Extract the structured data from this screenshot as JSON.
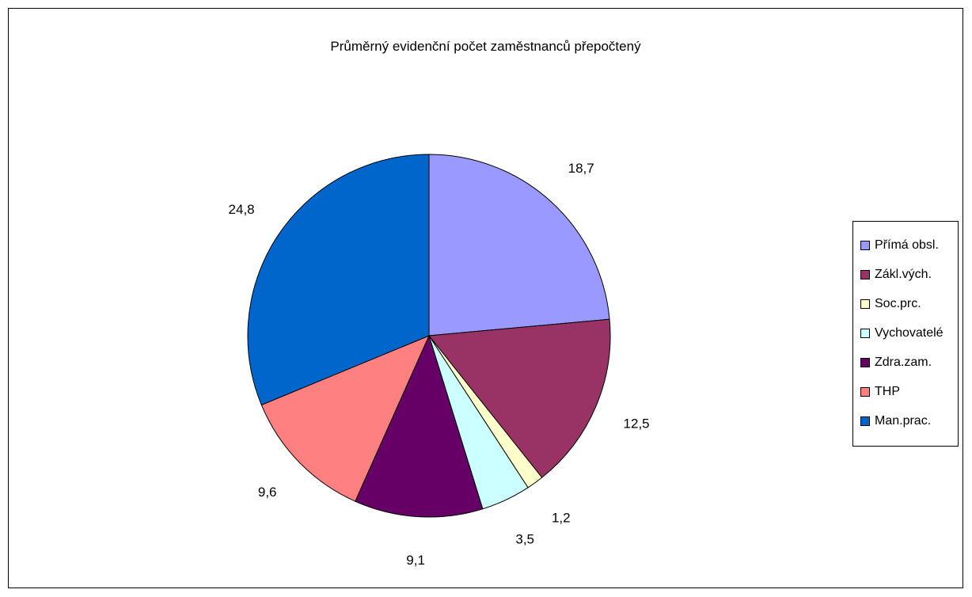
{
  "chart_data": {
    "type": "pie",
    "title": "Průměrný evidenční počet zaměstnanců přepočtený",
    "categories": [
      "Přímá obsl.",
      "Zákl.vých.",
      "Soc.prc.",
      "Vychovatelé",
      "Zdra.zam.",
      "THP",
      "Man.prac."
    ],
    "values": [
      18.7,
      12.5,
      1.2,
      3.5,
      9.1,
      9.6,
      24.8
    ],
    "value_labels": [
      "18,7",
      "12,5",
      "1,2",
      "3,5",
      "9,1",
      "9,6",
      "24,8"
    ],
    "colors": [
      "#9999FF",
      "#993366",
      "#FFFFCC",
      "#CCFFFF",
      "#660066",
      "#FF8080",
      "#0066CC"
    ],
    "legend_position": "right",
    "start_angle": "12 o'clock",
    "direction": "clockwise"
  }
}
